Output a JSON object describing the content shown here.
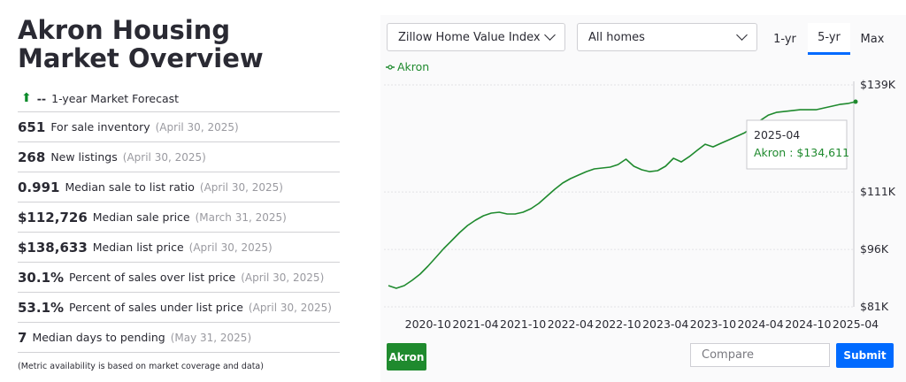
{
  "overview": {
    "title": "Akron Housing Market Overview",
    "forecast": {
      "value": "--",
      "label": "1-year Market Forecast"
    },
    "rows": [
      {
        "value": "651",
        "label": "For sale inventory",
        "date": "(April 30, 2025)"
      },
      {
        "value": "268",
        "label": "New listings",
        "date": "(April 30, 2025)"
      },
      {
        "value": "0.991",
        "label": "Median sale to list ratio",
        "date": "(April 30, 2025)"
      },
      {
        "value": "$112,726",
        "label": "Median sale price",
        "date": "(March 31, 2025)"
      },
      {
        "value": "$138,633",
        "label": "Median list price",
        "date": "(April 30, 2025)"
      },
      {
        "value": "30.1%",
        "label": "Percent of sales over list price",
        "date": "(April 30, 2025)"
      },
      {
        "value": "53.1%",
        "label": "Percent of sales under list price",
        "date": "(April 30, 2025)"
      },
      {
        "value": "7",
        "label": "Median days to pending",
        "date": "(May 31, 2025)"
      }
    ],
    "footnote": "(Metric availability is based on market coverage and data)"
  },
  "controls": {
    "metric": "Zillow Home Value Index",
    "home_type": "All homes",
    "tabs": [
      "1-yr",
      "5-yr",
      "Max"
    ],
    "selected_tab": 1,
    "series_button": "Akron",
    "compare_placeholder": "Compare",
    "submit": "Submit"
  },
  "chart_data": {
    "type": "line",
    "x": [
      "2020-05",
      "2020-06",
      "2020-07",
      "2020-08",
      "2020-09",
      "2020-10",
      "2020-11",
      "2020-12",
      "2021-01",
      "2021-02",
      "2021-03",
      "2021-04",
      "2021-05",
      "2021-06",
      "2021-07",
      "2021-08",
      "2021-09",
      "2021-10",
      "2021-11",
      "2021-12",
      "2022-01",
      "2022-02",
      "2022-03",
      "2022-04",
      "2022-05",
      "2022-06",
      "2022-07",
      "2022-08",
      "2022-09",
      "2022-10",
      "2022-11",
      "2022-12",
      "2023-01",
      "2023-02",
      "2023-03",
      "2023-04",
      "2023-05",
      "2023-06",
      "2023-07",
      "2023-08",
      "2023-09",
      "2023-10",
      "2023-11",
      "2023-12",
      "2024-01",
      "2024-02",
      "2024-03",
      "2024-04",
      "2024-05",
      "2024-06",
      "2024-07",
      "2024-08",
      "2024-09",
      "2024-10",
      "2024-11",
      "2024-12",
      "2025-01",
      "2025-02",
      "2025-03",
      "2025-04"
    ],
    "series": [
      {
        "name": "Akron",
        "color": "#1f8a2e",
        "values": [
          86540,
          85850,
          86540,
          87930,
          89550,
          91630,
          93940,
          96250,
          98330,
          100400,
          102250,
          103640,
          104790,
          105490,
          105720,
          105260,
          105260,
          105720,
          106640,
          108030,
          109880,
          111720,
          113340,
          114500,
          115420,
          116340,
          117040,
          117270,
          117500,
          118190,
          119580,
          117730,
          116810,
          116340,
          116580,
          117730,
          119810,
          118880,
          120270,
          121890,
          123500,
          122810,
          123740,
          124660,
          125580,
          126510,
          127890,
          129740,
          131130,
          131820,
          132050,
          132280,
          132510,
          132510,
          132510,
          132980,
          133440,
          133900,
          134130,
          134611
        ]
      }
    ],
    "xticks": [
      5,
      11,
      17,
      23,
      29,
      35,
      41,
      47,
      53,
      59
    ],
    "ylim": [
      81000,
      139000
    ],
    "yticks": [
      {
        "value": 81000,
        "label": "$81K"
      },
      {
        "value": 96000,
        "label": "$96K"
      },
      {
        "value": 111000,
        "label": "$111K"
      },
      {
        "value": 139000,
        "label": "$139K"
      }
    ],
    "grid": true,
    "tooltip": {
      "index": 59,
      "label": "Akron : $134,611"
    }
  }
}
